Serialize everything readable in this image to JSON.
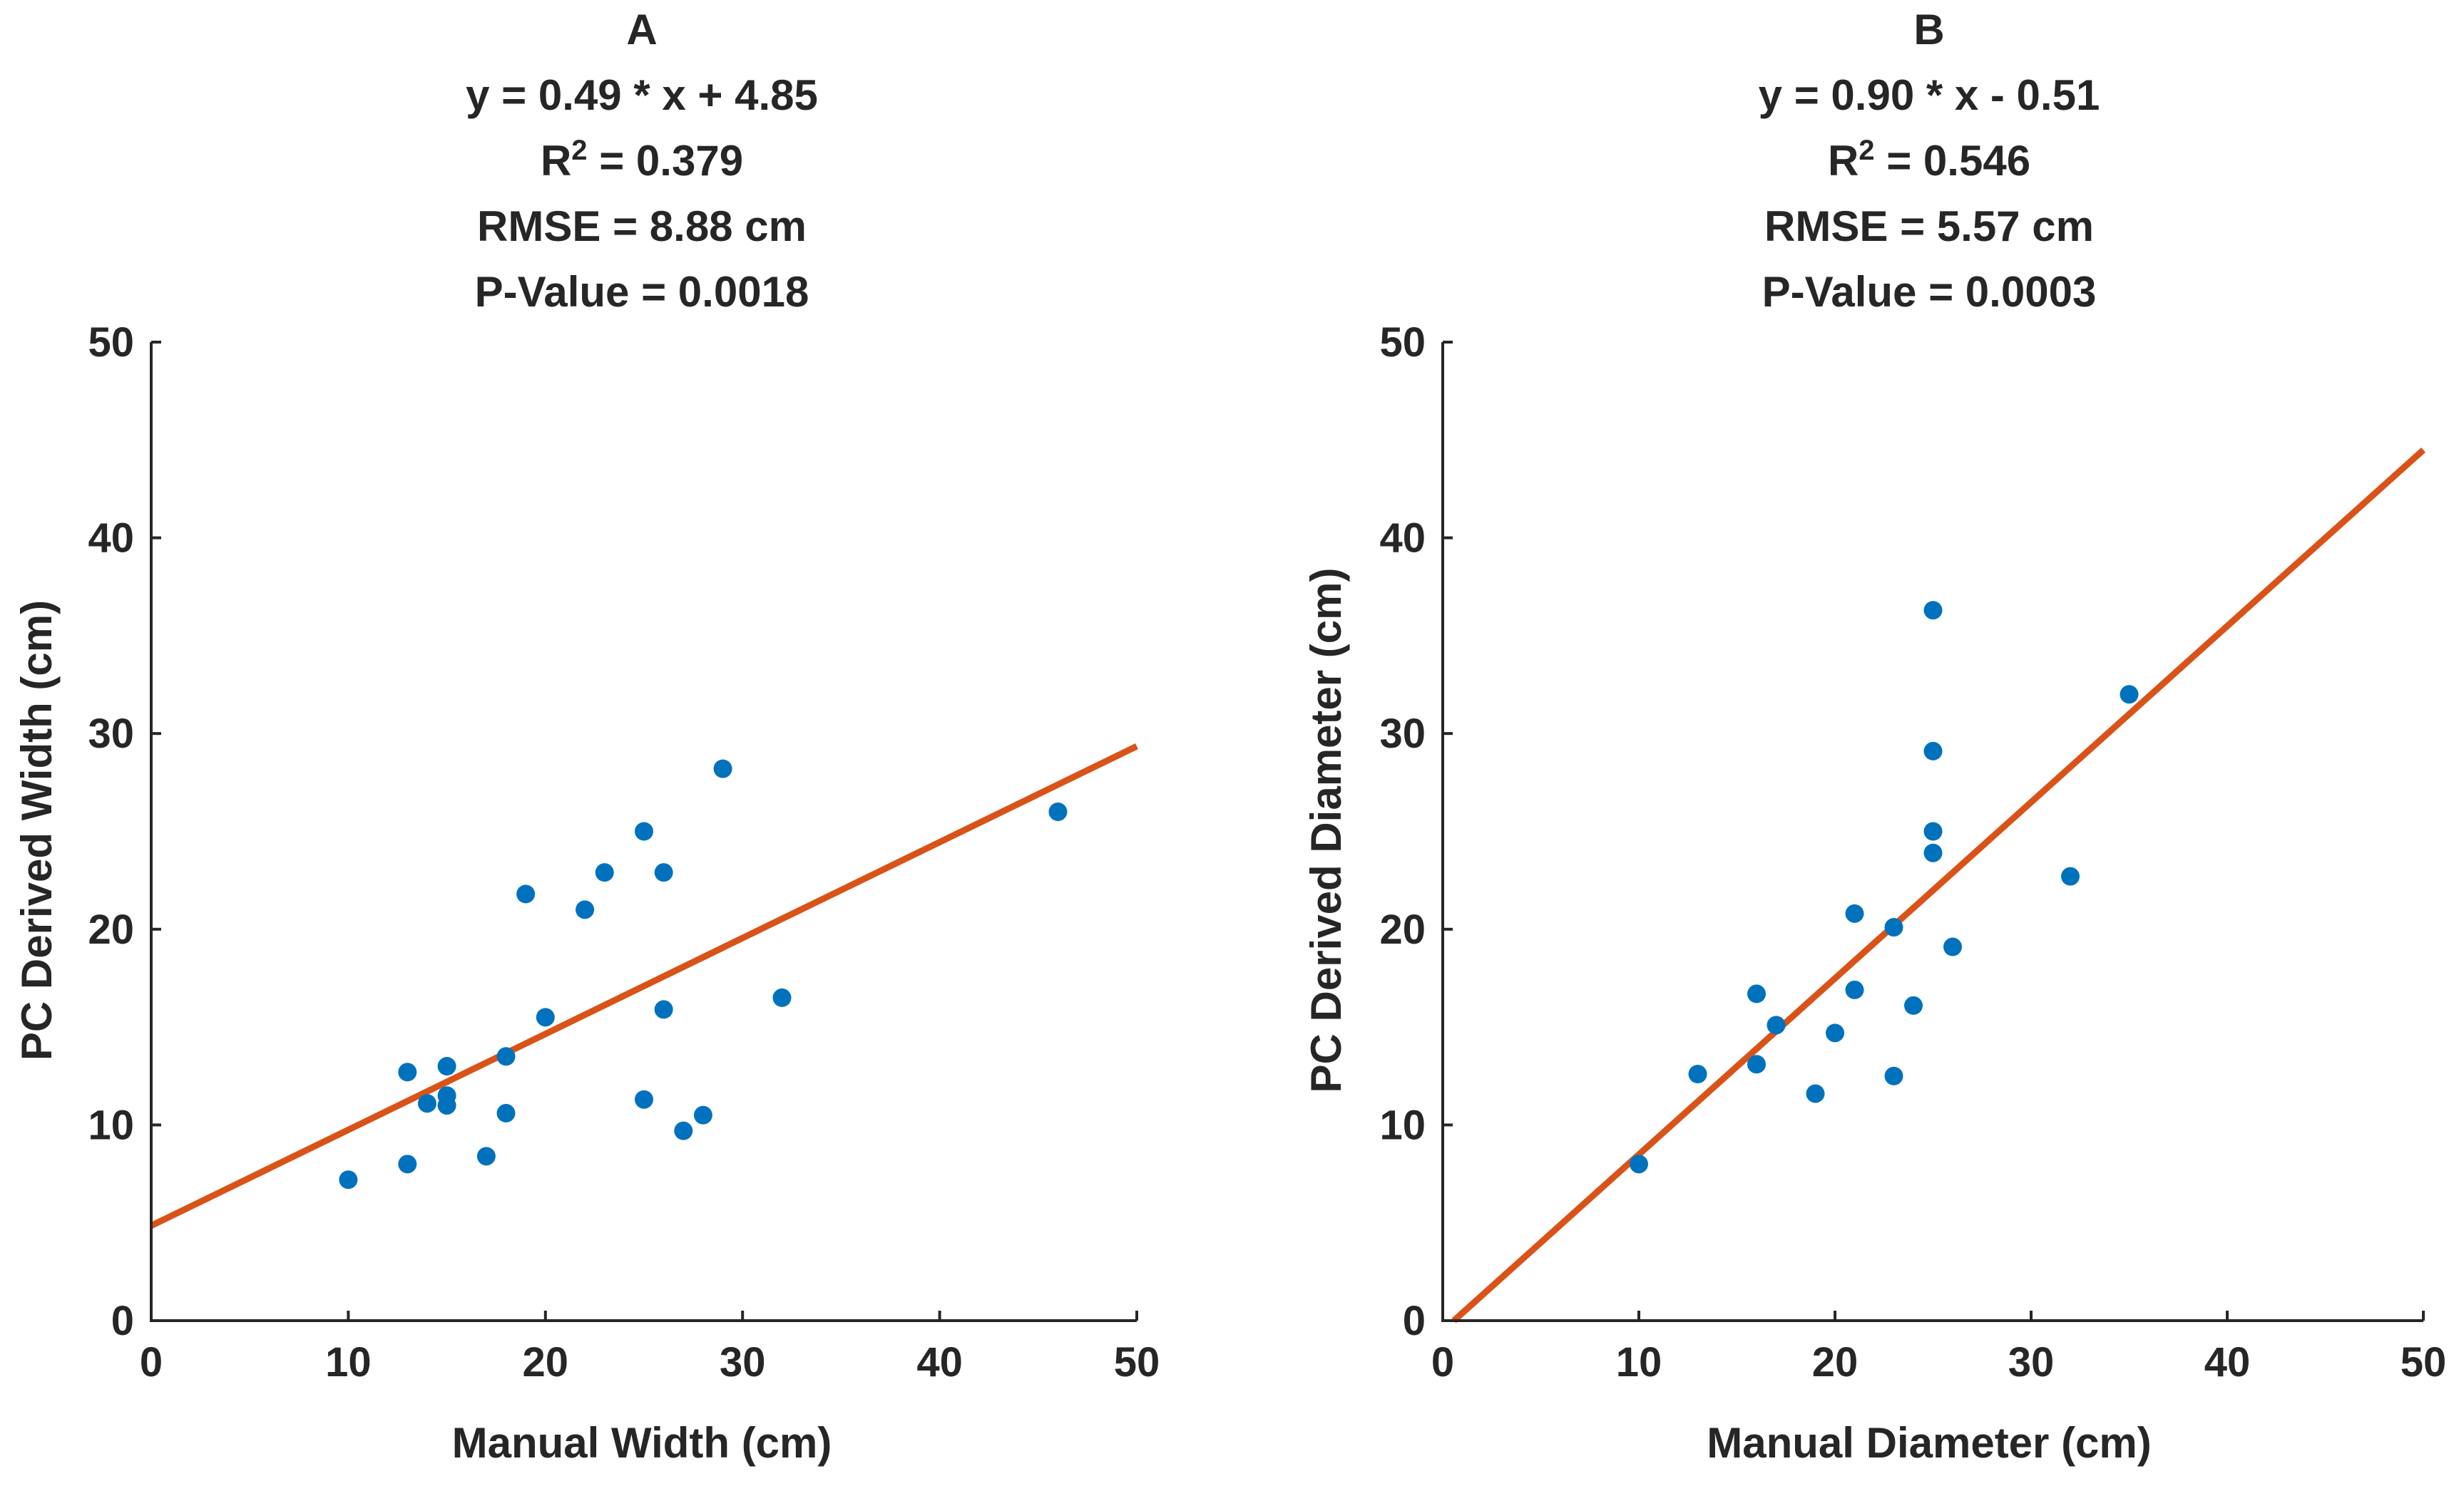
{
  "chart_data": [
    {
      "panel": "A",
      "type": "scatter",
      "title_lines": [
        "A",
        "y = 0.49 * x + 4.85",
        "R^2 = 0.379",
        "RMSE = 8.88 cm",
        "P-Value = 0.0018"
      ],
      "r2_prefix": "R",
      "r2_sup": "2",
      "r2_suffix": " = 0.379",
      "xlabel": "Manual Width (cm)",
      "ylabel": "PC Derived Width (cm)",
      "xlim": [
        0,
        50
      ],
      "ylim": [
        0,
        50
      ],
      "xticks": [
        0,
        10,
        20,
        30,
        40,
        50
      ],
      "yticks": [
        0,
        10,
        20,
        30,
        40,
        50
      ],
      "xtick_labels": [
        "0",
        "10",
        "20",
        "30",
        "40",
        "50"
      ],
      "ytick_labels": [
        "0",
        "10",
        "20",
        "30",
        "40",
        "50"
      ],
      "points": [
        [
          10,
          7.2
        ],
        [
          13,
          8.0
        ],
        [
          13,
          12.7
        ],
        [
          14,
          11.1
        ],
        [
          15,
          13.0
        ],
        [
          15,
          11.0
        ],
        [
          15,
          11.5
        ],
        [
          17,
          8.4
        ],
        [
          18,
          13.5
        ],
        [
          18,
          10.6
        ],
        [
          19,
          21.8
        ],
        [
          20,
          15.5
        ],
        [
          22,
          21.0
        ],
        [
          23,
          22.9
        ],
        [
          25,
          25.0
        ],
        [
          25,
          11.3
        ],
        [
          26,
          22.9
        ],
        [
          26,
          15.9
        ],
        [
          27,
          9.7
        ],
        [
          28,
          10.5
        ],
        [
          29,
          28.2
        ],
        [
          32,
          16.5
        ],
        [
          46,
          26.0
        ]
      ],
      "fit": {
        "slope": 0.49,
        "intercept": 4.85,
        "x_range": [
          0,
          50
        ]
      },
      "point_color": "#0072BD",
      "line_color": "#D95319"
    },
    {
      "panel": "B",
      "type": "scatter",
      "title_lines": [
        "B",
        "y = 0.90 * x - 0.51",
        "R^2 = 0.546",
        "RMSE = 5.57 cm",
        "P-Value = 0.0003"
      ],
      "r2_prefix": "R",
      "r2_sup": "2",
      "r2_suffix": " = 0.546",
      "xlabel": "Manual Diameter (cm)",
      "ylabel": "PC Derived Diameter (cm)",
      "xlim": [
        0,
        50
      ],
      "ylim": [
        0,
        50
      ],
      "xticks": [
        0,
        10,
        20,
        30,
        40,
        50
      ],
      "yticks": [
        0,
        10,
        20,
        30,
        40,
        50
      ],
      "xtick_labels": [
        "0",
        "10",
        "20",
        "30",
        "40",
        "50"
      ],
      "ytick_labels": [
        "0",
        "10",
        "20",
        "30",
        "40",
        "50"
      ],
      "points": [
        [
          10,
          8.0
        ],
        [
          13,
          12.6
        ],
        [
          16,
          16.7
        ],
        [
          16,
          13.1
        ],
        [
          17,
          15.1
        ],
        [
          19,
          11.6
        ],
        [
          20,
          14.7
        ],
        [
          21,
          20.8
        ],
        [
          21,
          16.9
        ],
        [
          23,
          20.1
        ],
        [
          23,
          12.5
        ],
        [
          24,
          16.1
        ],
        [
          25,
          36.3
        ],
        [
          25,
          29.1
        ],
        [
          25,
          25.0
        ],
        [
          25,
          23.9
        ],
        [
          26,
          19.1
        ],
        [
          32,
          22.7
        ],
        [
          35,
          32.0
        ]
      ],
      "fit": {
        "slope": 0.9,
        "intercept": -0.51,
        "x_range": [
          0.5667,
          50
        ]
      },
      "point_color": "#0072BD",
      "line_color": "#D95319"
    }
  ]
}
